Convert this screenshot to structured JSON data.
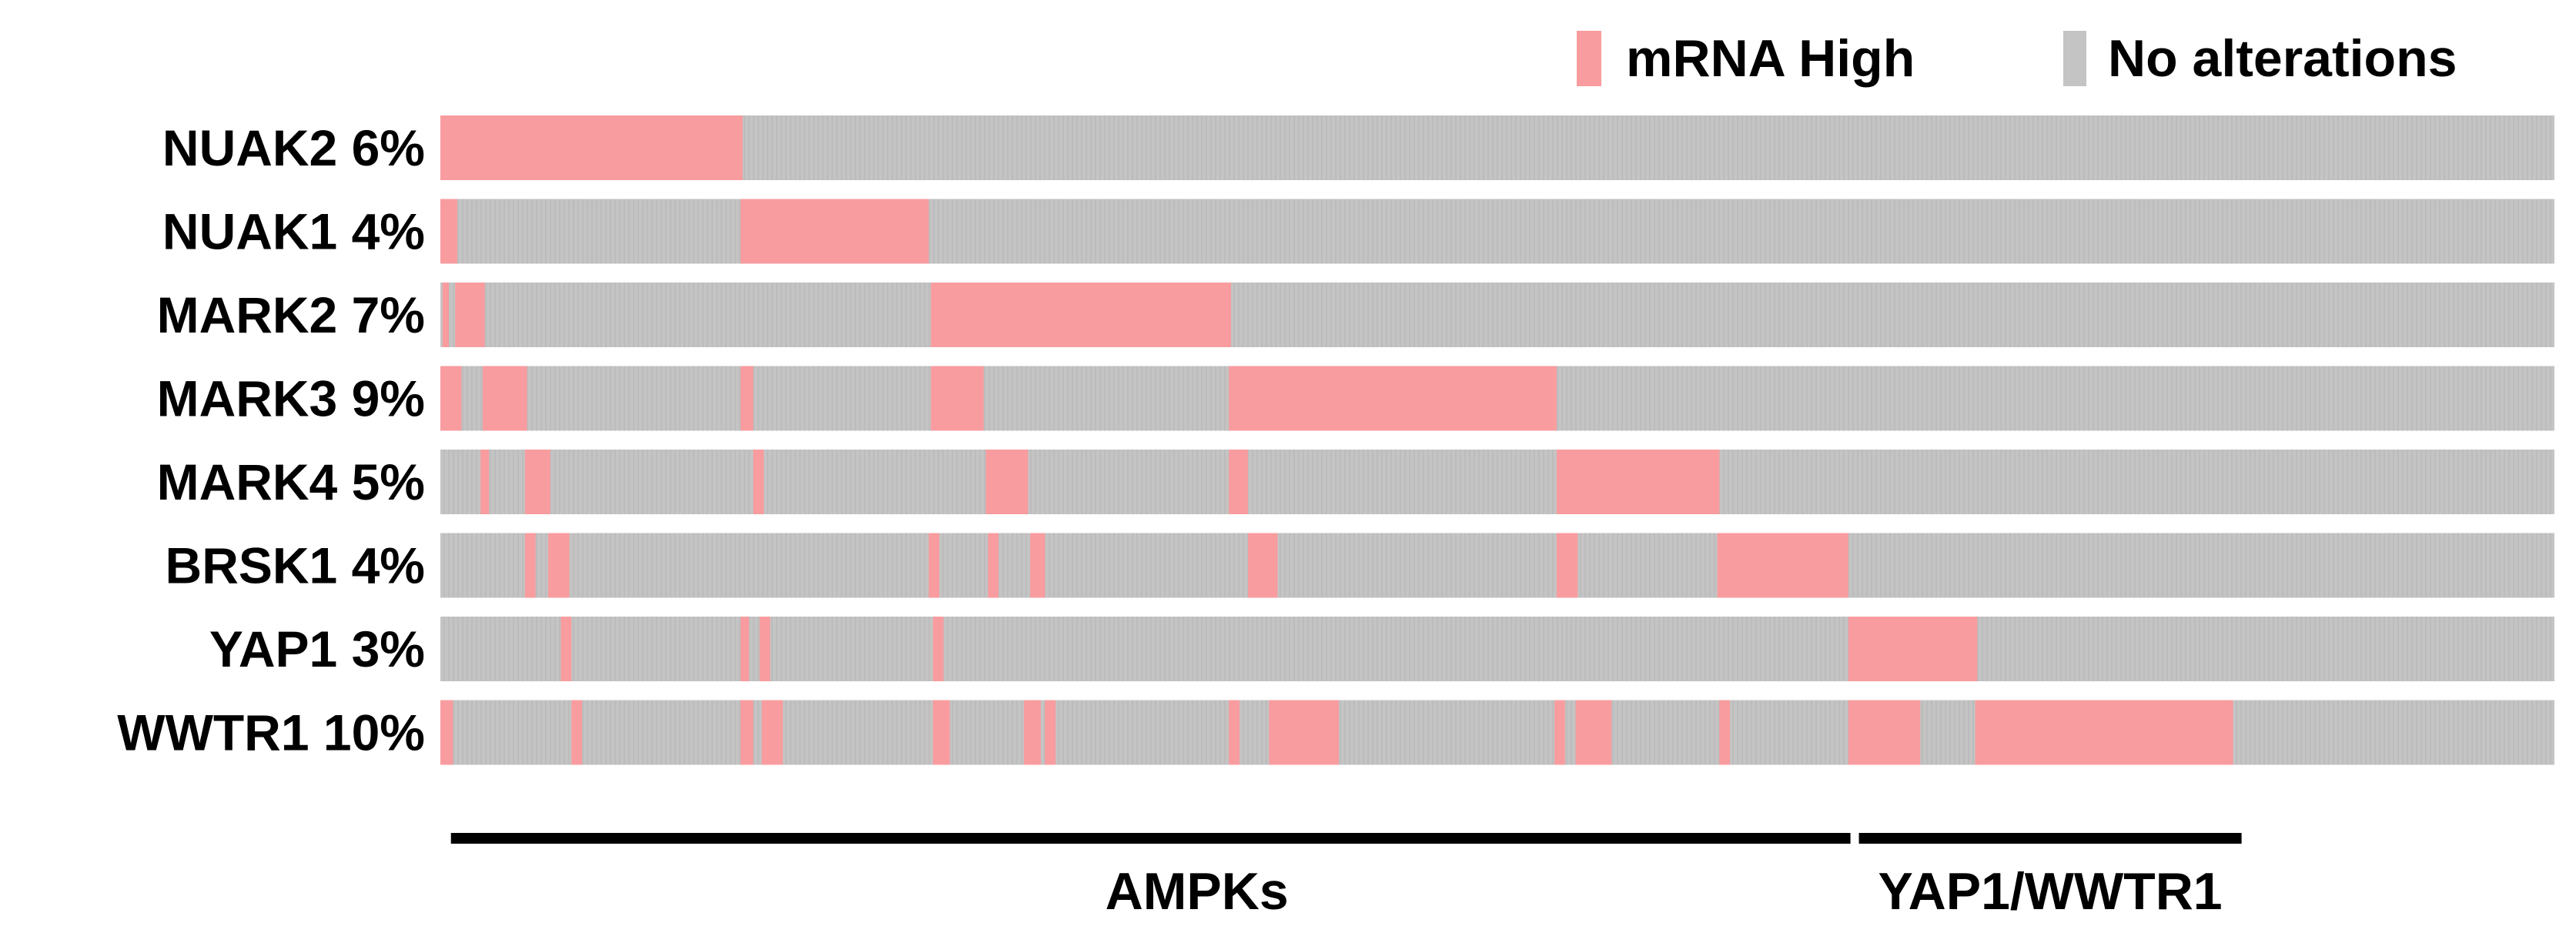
{
  "chart_data": {
    "type": "oncoprint",
    "x_range": [
      0,
      100
    ],
    "legend": [
      {
        "label": "mRNA High",
        "color": "#f89c9f"
      },
      {
        "label": "No alterations",
        "color": "#c4c4c4"
      }
    ],
    "colors": {
      "mrna_high": "#f89c9f",
      "no_alteration": "#c4c4c4",
      "group_bar": "#000000",
      "text": "#000000"
    },
    "rows": [
      {
        "gene": "NUAK2",
        "pct": "6%",
        "label": "NUAK2 6%",
        "altered": [
          [
            0,
            14.3
          ]
        ]
      },
      {
        "gene": "NUAK1",
        "pct": "4%",
        "label": "NUAK1 4%",
        "altered": [
          [
            0,
            0.8
          ],
          [
            14.2,
            23.1
          ]
        ]
      },
      {
        "gene": "MARK2",
        "pct": "7%",
        "label": "MARK2 7%",
        "altered": [
          [
            0.1,
            0.4
          ],
          [
            0.7,
            2.1
          ],
          [
            23.2,
            37.4
          ]
        ]
      },
      {
        "gene": "MARK3",
        "pct": "9%",
        "label": "MARK3 9%",
        "altered": [
          [
            0,
            1.0
          ],
          [
            2.0,
            4.1
          ],
          [
            14.2,
            14.8
          ],
          [
            23.2,
            25.7
          ],
          [
            37.3,
            52.8
          ]
        ]
      },
      {
        "gene": "MARK4",
        "pct": "5%",
        "label": "MARK4 5%",
        "altered": [
          [
            1.9,
            2.3
          ],
          [
            4.0,
            5.2
          ],
          [
            14.8,
            15.3
          ],
          [
            25.8,
            27.8
          ],
          [
            37.3,
            38.2
          ],
          [
            52.8,
            60.5
          ]
        ]
      },
      {
        "gene": "BRSK1",
        "pct": "4%",
        "label": "BRSK1 4%",
        "altered": [
          [
            4.0,
            4.5
          ],
          [
            5.1,
            6.1
          ],
          [
            23.1,
            23.6
          ],
          [
            25.9,
            26.4
          ],
          [
            27.9,
            28.6
          ],
          [
            38.2,
            39.6
          ],
          [
            52.8,
            53.8
          ],
          [
            60.4,
            66.6
          ]
        ]
      },
      {
        "gene": "YAP1",
        "pct": "3%",
        "label": "YAP1 3%",
        "altered": [
          [
            5.7,
            6.2
          ],
          [
            14.2,
            14.6
          ],
          [
            15.1,
            15.6
          ],
          [
            23.3,
            23.8
          ],
          [
            66.6,
            72.7
          ]
        ]
      },
      {
        "gene": "WWTR1",
        "pct": "10%",
        "label": "WWTR1 10%",
        "altered": [
          [
            0,
            0.6
          ],
          [
            6.2,
            6.7
          ],
          [
            14.2,
            14.8
          ],
          [
            15.2,
            16.2
          ],
          [
            23.3,
            24.1
          ],
          [
            27.6,
            28.4
          ],
          [
            28.6,
            29.1
          ],
          [
            37.3,
            37.8
          ],
          [
            39.2,
            42.5
          ],
          [
            52.7,
            53.2
          ],
          [
            53.7,
            55.4
          ],
          [
            60.5,
            61.0
          ],
          [
            66.6,
            70.0
          ],
          [
            72.6,
            84.8
          ]
        ]
      }
    ],
    "groups": [
      {
        "label": "AMPKs",
        "range": [
          0.5,
          66.7
        ]
      },
      {
        "label": "YAP1/WWTR1",
        "range": [
          67.1,
          85.2
        ]
      }
    ]
  }
}
